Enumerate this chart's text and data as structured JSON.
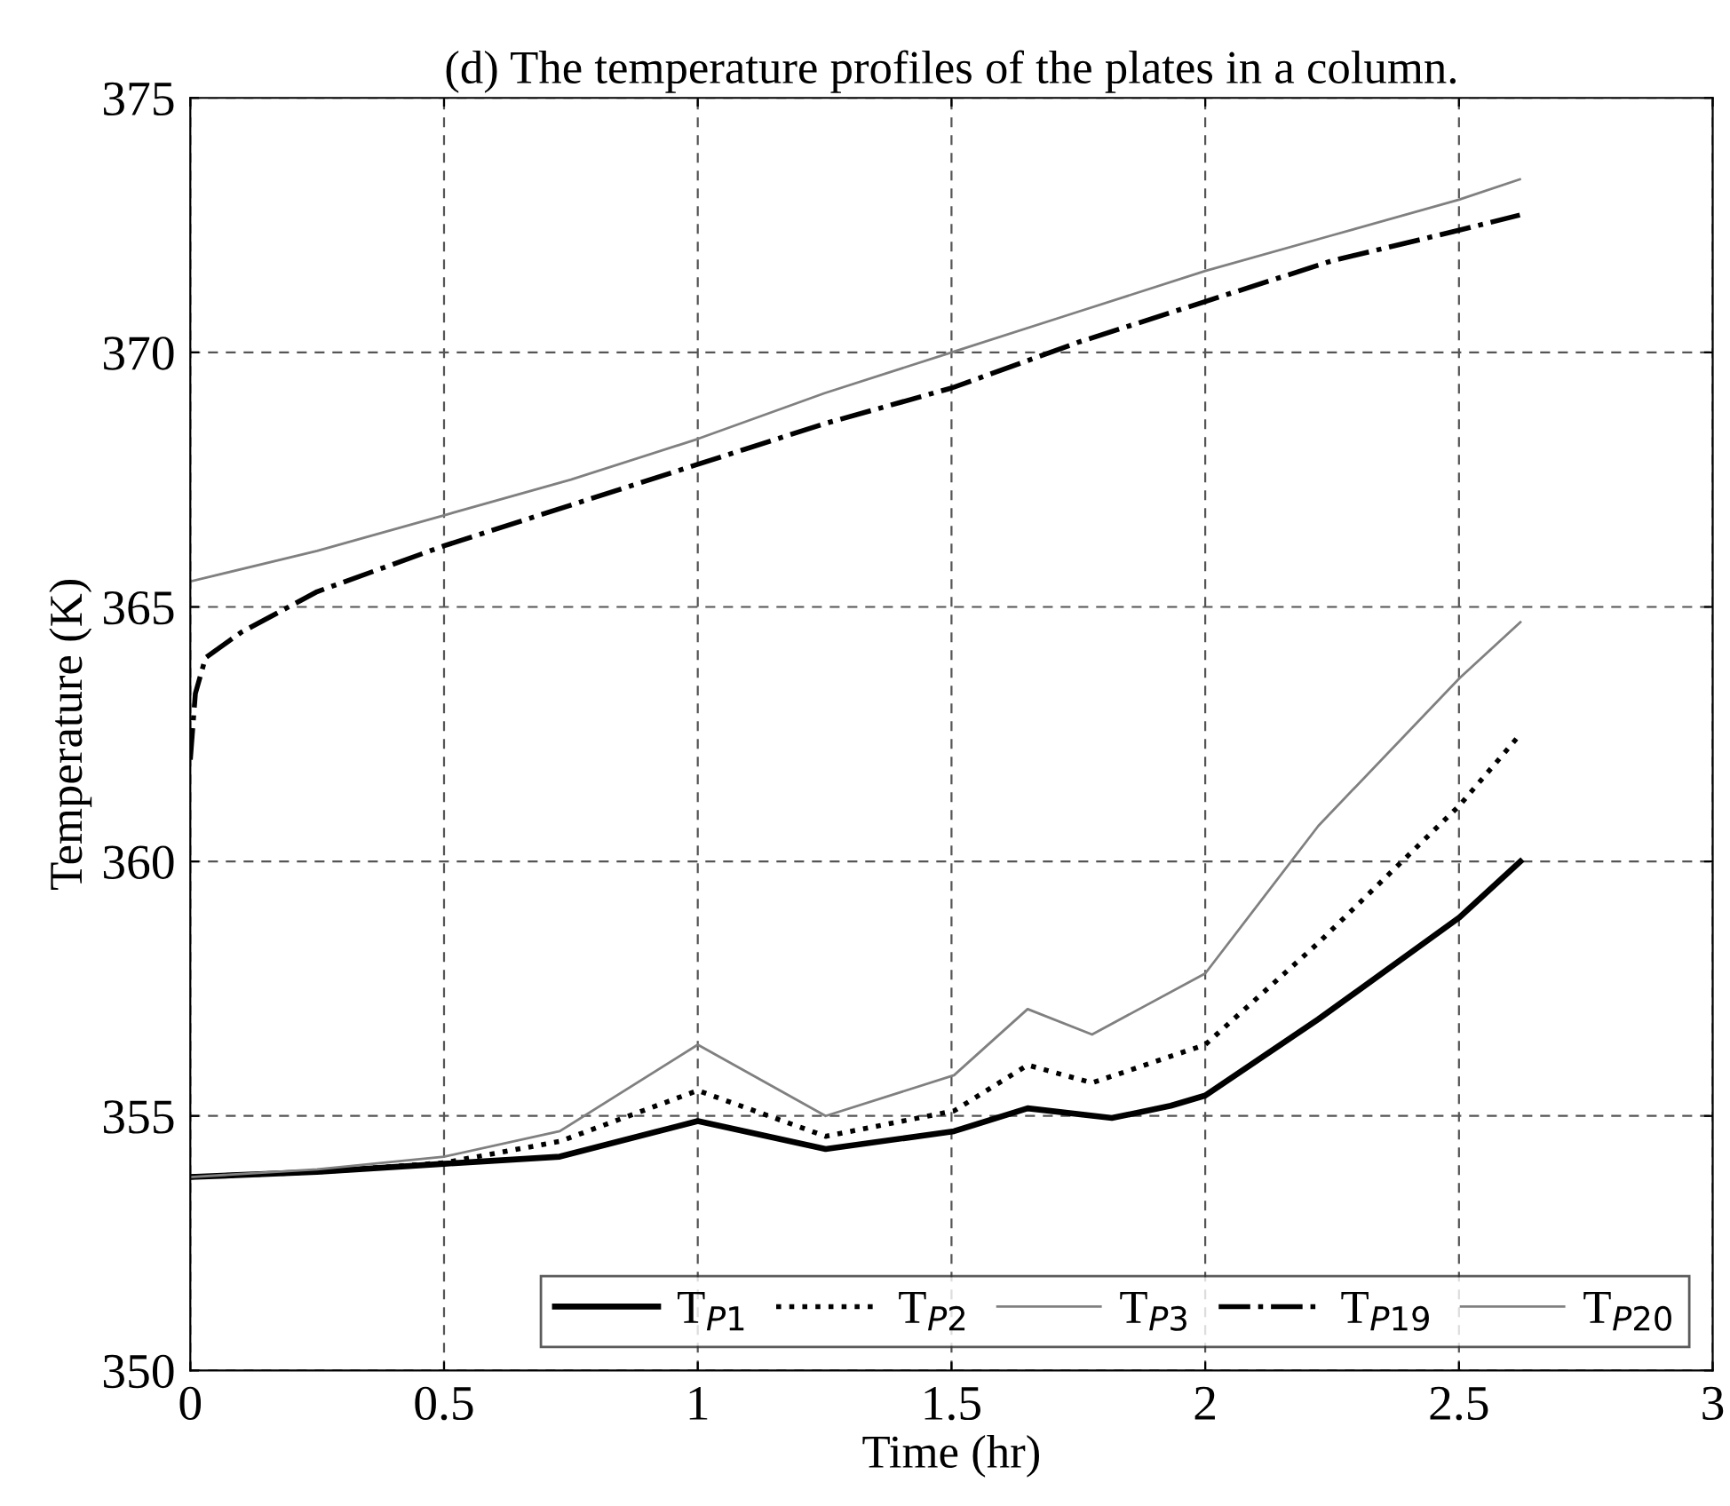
{
  "chart_data": {
    "type": "line",
    "title": "(d) The temperature profiles of the plates in a column.",
    "xlabel": "Time (hr)",
    "ylabel": "Temperature (K)",
    "xlim": [
      0,
      3
    ],
    "xticks": [
      0,
      0.5,
      1,
      1.5,
      2,
      2.5,
      3
    ],
    "ylim": [
      350,
      375
    ],
    "yticks": [
      350,
      355,
      360,
      365,
      370,
      375
    ],
    "grid": true,
    "legend": "bottom right",
    "series": [
      {
        "name": "T$_{P1}$",
        "color": "#000000",
        "line_style": "solid",
        "x": [
          0,
          0.25,
          0.5,
          0.728,
          1.0,
          1.252,
          1.505,
          1.65,
          1.816,
          1.932,
          2.0,
          2.223,
          2.501,
          2.621
        ],
        "values": [
          353.8,
          353.9,
          354.06,
          354.2,
          354.9,
          354.35,
          354.7,
          355.15,
          354.96,
          355.2,
          355.4,
          356.9,
          358.9,
          360.0
        ]
      },
      {
        "name": "T$_{P2}$",
        "color": "#000000",
        "line_style": "dotted",
        "x": [
          0,
          0.25,
          0.5,
          0.728,
          1.0,
          1.252,
          1.505,
          1.65,
          1.777,
          2.0,
          2.223,
          2.501,
          2.621
        ],
        "values": [
          353.8,
          353.9,
          354.08,
          354.5,
          355.5,
          354.6,
          355.1,
          356.0,
          355.65,
          356.4,
          358.4,
          361.1,
          362.5
        ]
      },
      {
        "name": "T$_{P3}$",
        "color": "#808080",
        "line_style": "solid",
        "x": [
          0,
          0.25,
          0.5,
          0.728,
          1.0,
          1.252,
          1.505,
          1.65,
          1.777,
          2.0,
          2.223,
          2.501,
          2.621
        ],
        "values": [
          353.8,
          353.95,
          354.2,
          354.7,
          356.4,
          355.0,
          355.8,
          357.1,
          356.6,
          357.8,
          360.7,
          363.6,
          364.7
        ]
      },
      {
        "name": "T$_{P19}$",
        "color": "#000000",
        "line_style": "dashdot",
        "x": [
          0,
          0.01,
          0.03,
          0.1,
          0.25,
          0.5,
          0.75,
          1.0,
          1.25,
          1.5,
          1.75,
          2.0,
          2.25,
          2.5,
          2.62
        ],
        "values": [
          362.0,
          363.3,
          364.0,
          364.5,
          365.3,
          366.2,
          367.0,
          367.8,
          368.6,
          369.3,
          370.2,
          371.0,
          371.8,
          372.4,
          372.7
        ]
      },
      {
        "name": "T$_{P20}$",
        "color": "#808080",
        "line_style": "solid",
        "x": [
          0,
          0.25,
          0.5,
          0.75,
          1.0,
          1.25,
          1.5,
          1.75,
          2.0,
          2.25,
          2.5,
          2.62
        ],
        "values": [
          365.5,
          366.1,
          366.8,
          367.5,
          368.3,
          369.2,
          370.0,
          370.8,
          371.6,
          372.3,
          373.0,
          373.4
        ]
      }
    ]
  }
}
